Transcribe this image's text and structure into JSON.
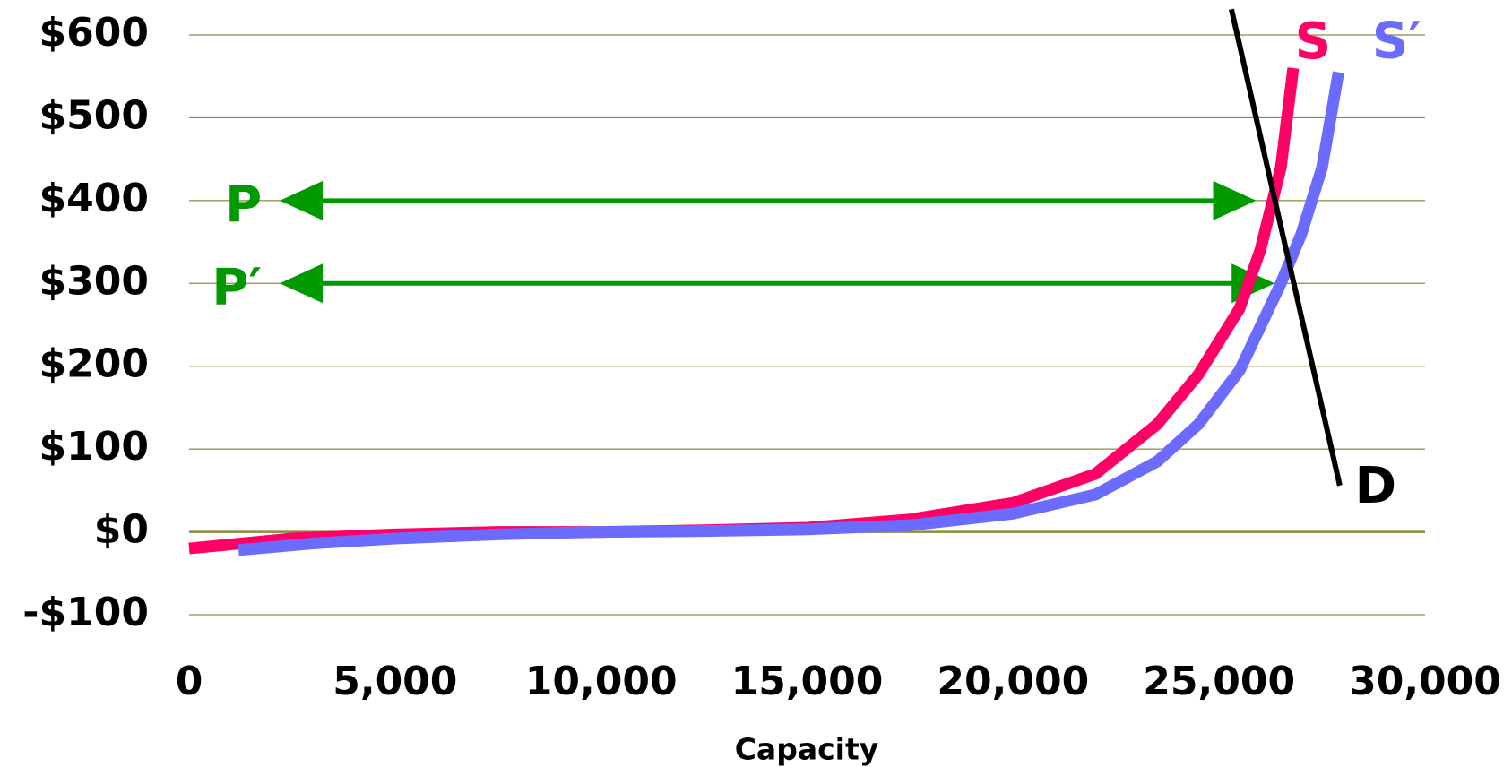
{
  "chart_data": {
    "type": "line",
    "x_label": "Capacity",
    "xlim": [
      0,
      30000
    ],
    "ylim": [
      -100,
      600
    ],
    "xticks": [
      0,
      {
        "value": 5000,
        "label": "5,000"
      },
      {
        "value": 10000,
        "label": "10,000"
      },
      {
        "value": 15000,
        "label": "15,000"
      },
      {
        "value": 20000,
        "label": "20,000"
      },
      {
        "value": 25000,
        "label": "25,000"
      },
      {
        "value": 30000,
        "label": "30,000"
      }
    ],
    "yticks": [
      {
        "value": -100,
        "label": "-$100"
      },
      {
        "value": 0,
        "label": "$0"
      },
      {
        "value": 100,
        "label": "$100"
      },
      {
        "value": 200,
        "label": "$200"
      },
      {
        "value": 300,
        "label": "$300"
      },
      {
        "value": 400,
        "label": "$400"
      },
      {
        "value": 500,
        "label": "$500"
      },
      {
        "value": 600,
        "label": "$600"
      }
    ],
    "grid": true,
    "grid_color": "#8c8c3c",
    "series": [
      {
        "name": "S",
        "color": "#ff0066",
        "x": [
          0,
          2500,
          5000,
          7500,
          10000,
          12500,
          15000,
          17500,
          20000,
          22000,
          23500,
          24500,
          25500,
          26000,
          26500,
          26800
        ],
        "values": [
          -20,
          -8,
          -3,
          0,
          0,
          2,
          5,
          15,
          35,
          70,
          130,
          190,
          270,
          340,
          440,
          560
        ]
      },
      {
        "name": "S′",
        "color": "#6b6bff",
        "x": [
          1200,
          3000,
          5000,
          7500,
          10000,
          12500,
          15000,
          17500,
          20000,
          22000,
          23500,
          24500,
          25500,
          26500,
          27000,
          27500,
          27900
        ],
        "values": [
          -22,
          -14,
          -8,
          -3,
          0,
          1,
          3,
          8,
          22,
          45,
          85,
          130,
          195,
          300,
          360,
          440,
          555
        ]
      },
      {
        "name": "D",
        "color": "#000000",
        "x": [
          25300,
          27930
        ],
        "values": [
          631,
          56
        ]
      }
    ],
    "arrows": [
      {
        "label": "P",
        "color": "#009900",
        "y": 400,
        "x": [
          2200,
          25900
        ]
      },
      {
        "label": "P′",
        "color": "#009900",
        "y": 300,
        "x": [
          2200,
          26350
        ]
      }
    ]
  }
}
